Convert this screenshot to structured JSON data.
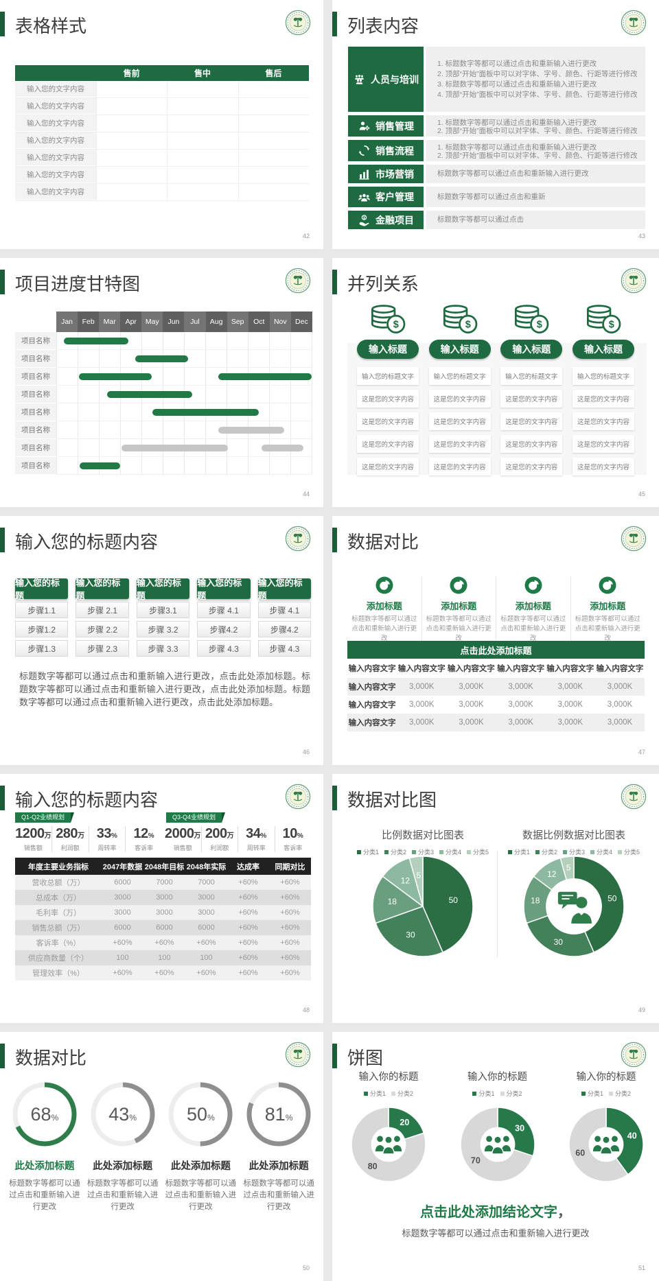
{
  "theme": {
    "primary_green": "#1e6b41",
    "accent_bar_green": "#1d5c38",
    "badge_green": "#1e7a46",
    "table_header_dark": "#212121",
    "light_row": "#f2f2f2"
  },
  "slides": {
    "table_style": {
      "title": "表格样式",
      "page_num": "42",
      "header_cols": [
        "售前",
        "售中",
        "售后"
      ],
      "row_label": "输入您的文字内容"
    },
    "list_content": {
      "title": "列表内容",
      "page_num": "43",
      "items": [
        {
          "icon": "people-group-icon",
          "label": "人员与培训",
          "numbered": true,
          "lines": [
            "标题数字等都可以通过点击和重新输入进行更改",
            "顶部“开始”面板中可以对字体、字号、颜色、行距等进行修改",
            "标题数字等都可以通过点击和重新输入进行更改",
            "顶部“开始”面板中可以对字体、字号、颜色、行距等进行修改"
          ]
        },
        {
          "icon": "person-gear-icon",
          "label": "销售管理",
          "numbered": true,
          "lines": [
            "标题数字等都可以通过点击和重新输入进行更改",
            "顶部“开始”面板中可以对字体、字号、颜色、行距等进行修改"
          ]
        },
        {
          "icon": "cycle-arrows-icon",
          "label": "销售流程",
          "numbered": true,
          "lines": [
            "标题数字等都可以通过点击和重新输入进行更改",
            "顶部“开始”面板中可以对字体、字号、颜色、行距等进行修改"
          ]
        },
        {
          "icon": "bar-chart-icon",
          "label": "市场营销",
          "numbered": false,
          "lines": [
            "标题数字等都可以通过点击和重新输入进行更改"
          ]
        },
        {
          "icon": "people-three-icon",
          "label": "客户管理",
          "numbered": false,
          "lines": [
            "标题数字等都可以通过点击和重新"
          ]
        },
        {
          "icon": "money-hand-icon",
          "label": "金融项目",
          "numbered": false,
          "lines": [
            "标题数字等都可以通过点击"
          ]
        }
      ]
    },
    "gantt": {
      "title": "项目进度甘特图",
      "page_num": "44"
    },
    "parallel": {
      "title": "并列关系",
      "page_num": "45",
      "column_title": "输入标题",
      "card_first": "输入您的标题文字",
      "card_rest": "这是您的文字内容"
    },
    "steps": {
      "title": "输入您的标题内容",
      "page_num": "46",
      "column_header": "输入您的标题",
      "columns": [
        [
          "步骤1.1",
          "步骤1.2",
          "步骤1.3"
        ],
        [
          "步骤 2.1",
          "步骤 2.2",
          "步骤 2.3"
        ],
        [
          "步骤3.1",
          "步骤 3.2",
          "步骤 3.3"
        ],
        [
          "步骤 4.1",
          "步骤4.2",
          "步骤 4.3"
        ],
        [
          "步骤 4.1",
          "步骤4.2",
          "步骤 4.3"
        ]
      ],
      "paragraph": "标题数字等都可以通过点击和重新输入进行更改，点击此处添加标题。标题数字等都可以通过点击和重新输入进行更改，点击此处添加标题。标题数字等都可以通过点击和重新输入进行更改，点击此处添加标题。"
    },
    "data_compare": {
      "title": "数据对比",
      "page_num": "47",
      "feature_title": "添加标题",
      "feature_desc": "标题数字等都可以通过点击和重新输入进行更改",
      "bar_title": "点击此处添加标题",
      "col_header": "输入内容文字",
      "row_label": "输入内容文字",
      "cell_value": "3,000K"
    },
    "kpi": {
      "title": "输入您的标题内容",
      "page_num": "48",
      "groups": [
        {
          "tag": "Q1-Q2业绩规划",
          "stats": [
            {
              "value": "1200",
              "unit": "万",
              "label": "销售额"
            },
            {
              "value": "280",
              "unit": "万",
              "label": "利润额"
            },
            {
              "value": "33",
              "unit": "%",
              "label": "周转率"
            },
            {
              "value": "12",
              "unit": "%",
              "label": "客诉率"
            }
          ]
        },
        {
          "tag": "Q3-Q4业绩规划",
          "stats": [
            {
              "value": "2000",
              "unit": "万",
              "label": "销售额"
            },
            {
              "value": "200",
              "unit": "万",
              "label": "利润额"
            },
            {
              "value": "34",
              "unit": "%",
              "label": "周转率"
            },
            {
              "value": "10",
              "unit": "%",
              "label": "客诉率"
            }
          ]
        }
      ],
      "table": {
        "headers": [
          "年度主要业务指标",
          "2047年数据",
          "2048年目标",
          "2048年实际",
          "达成率",
          "同期对比"
        ],
        "rows": [
          [
            "营收总额（万）",
            "6000",
            "7000",
            "7000",
            "+60%",
            "+60%"
          ],
          [
            "总成本（万）",
            "3000",
            "3000",
            "3000",
            "+60%",
            "+60%"
          ],
          [
            "毛利率（万）",
            "3000",
            "3000",
            "3000",
            "+60%",
            "+60%"
          ],
          [
            "销售总额（万）",
            "6000",
            "6000",
            "6000",
            "+60%",
            "+60%"
          ],
          [
            "客诉率（%）",
            "+60%",
            "+60%",
            "+60%",
            "+60%",
            "+60%"
          ],
          [
            "供应商数量（个）",
            "100",
            "100",
            "100",
            "+60%",
            "+60%"
          ],
          [
            "管理效率（%）",
            "+60%",
            "+60%",
            "+60%",
            "+60%",
            "+60%"
          ]
        ]
      }
    },
    "compare_charts": {
      "title": "数据对比图",
      "page_num": "49",
      "left_title": "比例数据对比图表",
      "right_title": "数据比例数据对比图表",
      "legend": [
        "分类1",
        "分类2",
        "分类3",
        "分类4",
        "分类5"
      ]
    },
    "donut_compare": {
      "title": "数据对比",
      "page_num": "50",
      "pct_suffix": "%",
      "items": [
        {
          "pct": "68",
          "title": "此处添加标题",
          "desc": "标题数字等都可以通过点击和重新输入进行更改"
        },
        {
          "pct": "43",
          "title": "此处添加标题",
          "desc": "标题数字等都可以通过点击和重新输入进行更改"
        },
        {
          "pct": "50",
          "title": "此处添加标题",
          "desc": "标题数字等都可以通过点击和重新输入进行更改"
        },
        {
          "pct": "81",
          "title": "此处添加标题",
          "desc": "标题数字等都可以通过点击和重新输入进行更改"
        }
      ]
    },
    "pie_slide": {
      "title": "饼图",
      "page_num": "51",
      "chart_title": "输入你的标题",
      "legend": [
        "分类1",
        "分类2"
      ],
      "conclusion": "点击此处添加结论文字",
      "conclusion_comma": "，",
      "conclusion_sub": "标题数字等都可以通过点击和重新输入进行更改"
    }
  },
  "chart_data": [
    {
      "type": "gantt",
      "title": "项目进度甘特图",
      "months": [
        "Jan",
        "Feb",
        "Mar",
        "Apr",
        "May",
        "Jun",
        "Jul",
        "Aug",
        "Sep",
        "Oct",
        "Nov",
        "Dec"
      ],
      "row_label": "项目名称",
      "bar_green": "#217a46",
      "bar_gray": "#c6c6c6",
      "rows": [
        {
          "bars": [
            {
              "start": 0.35,
              "end": 3.4,
              "color": "green"
            }
          ]
        },
        {
          "bars": [
            {
              "start": 3.7,
              "end": 6.2,
              "color": "green"
            }
          ]
        },
        {
          "bars": [
            {
              "start": 1.05,
              "end": 4.5,
              "color": "green"
            },
            {
              "start": 7.6,
              "end": 12,
              "color": "green"
            }
          ]
        },
        {
          "bars": [
            {
              "start": 2.4,
              "end": 6.4,
              "color": "green"
            }
          ]
        },
        {
          "bars": [
            {
              "start": 4.5,
              "end": 9.5,
              "color": "green"
            }
          ]
        },
        {
          "bars": [
            {
              "start": 7.6,
              "end": 10.7,
              "color": "gray"
            }
          ]
        },
        {
          "bars": [
            {
              "start": 3.05,
              "end": 8.05,
              "color": "gray"
            },
            {
              "start": 9.65,
              "end": 11.6,
              "color": "gray"
            }
          ]
        },
        {
          "bars": [
            {
              "start": 1.1,
              "end": 3.0,
              "color": "green"
            }
          ]
        }
      ]
    },
    {
      "type": "pie",
      "title": "比例数据对比图表",
      "categories": [
        "分类1",
        "分类2",
        "分类3",
        "分类4",
        "分类5"
      ],
      "values": [
        50,
        30,
        18,
        12,
        5
      ],
      "colors": [
        "#2b6e44",
        "#43815a",
        "#699e7e",
        "#8db9a0",
        "#b4d0bd"
      ],
      "label_size": 12,
      "label_colors": [
        "#ffffff",
        "#ffffff",
        "#ffffff",
        "#ffffff",
        "#ffffff"
      ],
      "legend_position": "top"
    },
    {
      "type": "donut",
      "title": "数据比例数据对比图表",
      "categories": [
        "分类1",
        "分类2",
        "分类3",
        "分类4",
        "分类5"
      ],
      "values": [
        50,
        30,
        18,
        12,
        5
      ],
      "colors": [
        "#2b6e44",
        "#43815a",
        "#699e7e",
        "#8db9a0",
        "#b4d0bd"
      ],
      "hole_ratio": 0.56,
      "label_size": 12,
      "label_colors": [
        "#ffffff",
        "#ffffff",
        "#ffffff",
        "#ffffff",
        "#ffffff"
      ],
      "center_icon": "consultant-chat-icon",
      "legend_position": "top"
    },
    {
      "type": "donut-progress",
      "values": [
        68,
        43,
        50,
        81
      ],
      "active_index": 0,
      "active_color": "#2e7d4b",
      "inactive_color": "#8f8f8f",
      "track_color": "#ededed"
    },
    {
      "type": "donut",
      "title": "输入你的标题",
      "categories": [
        "分类1",
        "分类2"
      ],
      "values": [
        20,
        80
      ],
      "colors": [
        "#27794a",
        "#d8d8d8"
      ],
      "hole_ratio": 0.47,
      "label_size": 12.5,
      "label_weight": "bold",
      "label_colors": [
        "#ffffff",
        "#4f4f4f"
      ],
      "center_icon": "people-trio-icon"
    },
    {
      "type": "donut",
      "title": "输入你的标题",
      "categories": [
        "分类1",
        "分类2"
      ],
      "values": [
        30,
        70
      ],
      "colors": [
        "#27794a",
        "#d8d8d8"
      ],
      "hole_ratio": 0.47,
      "label_size": 12.5,
      "label_weight": "bold",
      "label_colors": [
        "#ffffff",
        "#4f4f4f"
      ],
      "center_icon": "people-trio-icon"
    },
    {
      "type": "donut",
      "title": "输入你的标题",
      "categories": [
        "分类1",
        "分类2"
      ],
      "values": [
        40,
        60
      ],
      "colors": [
        "#27794a",
        "#d8d8d8"
      ],
      "hole_ratio": 0.47,
      "label_size": 12.5,
      "label_weight": "bold",
      "label_colors": [
        "#ffffff",
        "#4f4f4f"
      ],
      "center_icon": "people-trio-icon"
    }
  ]
}
